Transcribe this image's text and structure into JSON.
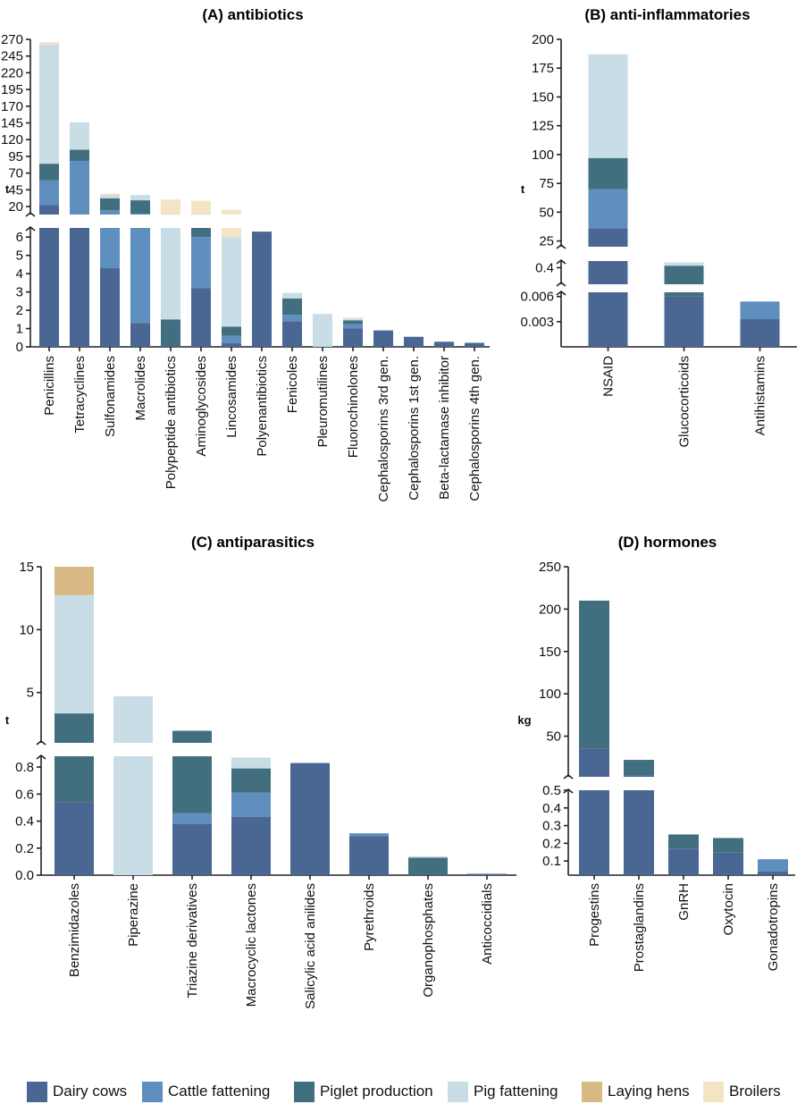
{
  "colors": {
    "Dairy cows": "#4a6793",
    "Cattle fattening": "#5f8fbe",
    "Piglet production": "#426f7f",
    "Pig fattening": "#c9dde6",
    "Laying hens": "#d8b985",
    "Broilers": "#f3e4c4"
  },
  "legend": [
    "Dairy cows",
    "Cattle fattening",
    "Piglet production",
    "Pig fattening",
    "Laying hens",
    "Broilers"
  ],
  "chart_data": [
    {
      "type": "bar",
      "stacked": true,
      "title": "(A)  antibiotics",
      "ylabel": "t",
      "broken_axis": true,
      "upper_ylim": [
        8,
        270
      ],
      "upper_ticks": [
        "20",
        "45",
        "70",
        "95",
        "120",
        "145",
        "170",
        "195",
        "220",
        "245",
        "270"
      ],
      "lower_ylim": [
        0,
        6.5
      ],
      "lower_ticks": [
        "0",
        "1",
        "2",
        "3",
        "4",
        "5",
        "6"
      ],
      "categories": [
        "Penicillins",
        "Tetracyclines",
        "Sulfonamides",
        "Macrolides",
        "Polypeptide antibiotics",
        "Aminoglycosides",
        "Lincosamides",
        "Polyenantibiotics",
        "Fenicoles",
        "Pleuromutilines",
        "Fluorochinolones",
        "Cephalosporins 3rd gen.",
        "Cephalosporins 1st gen.",
        "Beta-lactamase inhibitor",
        "Cephalosporins 4th gen."
      ],
      "series": [
        {
          "name": "Dairy cows",
          "values": [
            22,
            8,
            4.3,
            1.3,
            0,
            3.2,
            0.2,
            6.3,
            1.4,
            0,
            1.0,
            0.9,
            0.55,
            0.28,
            0.22
          ]
        },
        {
          "name": "Cattle fattening",
          "values": [
            37,
            80,
            10,
            8,
            0,
            2.8,
            0.4,
            0,
            0.35,
            0,
            0.25,
            0,
            0,
            0,
            0
          ]
        },
        {
          "name": "Piglet production",
          "values": [
            25,
            17,
            18,
            20,
            1.5,
            0.5,
            0.5,
            0,
            0.9,
            0,
            0.2,
            0,
            0,
            0,
            0
          ]
        },
        {
          "name": "Pig fattening",
          "values": [
            178,
            41,
            5,
            8,
            7,
            2,
            4.9,
            0,
            0.3,
            1.8,
            0.1,
            0,
            0,
            0,
            0
          ]
        },
        {
          "name": "Laying hens",
          "values": [
            0,
            0,
            0,
            0,
            0,
            0,
            0,
            0,
            0,
            0,
            0,
            0,
            0,
            0,
            0
          ]
        },
        {
          "name": "Broilers",
          "values": [
            4,
            0,
            2,
            0,
            22,
            20,
            9,
            0,
            0,
            0,
            0.05,
            0,
            0,
            0,
            0
          ]
        }
      ]
    },
    {
      "type": "bar",
      "stacked": true,
      "title": "(B)  anti-inflammatories",
      "ylabel": "t",
      "broken_axis": true,
      "segment_ranges": [
        [
          0,
          0.0065
        ],
        [
          0.35,
          0.42
        ],
        [
          20,
          200
        ]
      ],
      "segment_ticks": [
        [
          "0.003",
          "0.006"
        ],
        [
          "0.4"
        ],
        [
          "25",
          "50",
          "75",
          "100",
          "125",
          "150",
          "175",
          "200"
        ]
      ],
      "categories": [
        "NSAID",
        "Glucocorticoids",
        "Antihistamins"
      ],
      "series": [
        {
          "name": "Dairy cows",
          "values": [
            36,
            0.006,
            0.0033
          ]
        },
        {
          "name": "Cattle fattening",
          "values": [
            34,
            0,
            0.0021
          ]
        },
        {
          "name": "Piglet production",
          "values": [
            27,
            0.4,
            0
          ]
        },
        {
          "name": "Pig fattening",
          "values": [
            90,
            0.01,
            0
          ]
        },
        {
          "name": "Laying hens",
          "values": [
            0,
            0,
            0
          ]
        },
        {
          "name": "Broilers",
          "values": [
            0,
            0,
            0
          ]
        }
      ]
    },
    {
      "type": "bar",
      "stacked": true,
      "title": "(C)  antiparasitics",
      "ylabel": "t",
      "broken_axis": true,
      "upper_ylim": [
        1,
        15
      ],
      "upper_ticks": [
        "5",
        "10",
        "15"
      ],
      "lower_ylim": [
        0,
        0.88
      ],
      "lower_ticks": [
        "0.0",
        "0.2",
        "0.4",
        "0.6",
        "0.8"
      ],
      "categories": [
        "Benzimidazoles",
        "Piperazine",
        "Triazine derivatives",
        "Macrocyclic lactones",
        "Salicylic acid anilides",
        "Pyrethroids",
        "Organophosphates",
        "Anticoccidials"
      ],
      "series": [
        {
          "name": "Dairy cows",
          "values": [
            0.54,
            0,
            0.38,
            0.43,
            0.83,
            0.29,
            0,
            0.01
          ]
        },
        {
          "name": "Cattle fattening",
          "values": [
            0,
            0,
            0.08,
            0.18,
            0,
            0.02,
            0,
            0
          ]
        },
        {
          "name": "Piglet production",
          "values": [
            2.8,
            0,
            1.5,
            0.18,
            0,
            0,
            0.13,
            0
          ]
        },
        {
          "name": "Pig fattening",
          "values": [
            9.4,
            4.7,
            0,
            0.08,
            0,
            0,
            0.01,
            0
          ]
        },
        {
          "name": "Laying hens",
          "values": [
            2.3,
            0,
            0,
            0,
            0,
            0,
            0,
            0
          ]
        },
        {
          "name": "Broilers",
          "values": [
            0,
            0,
            0,
            0,
            0,
            0,
            0,
            0
          ]
        }
      ]
    },
    {
      "type": "bar",
      "stacked": true,
      "title": "(D)  hormones",
      "ylabel": "kg",
      "broken_axis": true,
      "upper_ylim": [
        2,
        250
      ],
      "upper_ticks": [
        "50",
        "100",
        "150",
        "200",
        "250"
      ],
      "lower_ylim": [
        0.02,
        0.5
      ],
      "lower_ticks": [
        "0.1",
        "0.2",
        "0.3",
        "0.4",
        "0.5"
      ],
      "categories": [
        "Progestins",
        "Prostaglandins",
        "GnRH",
        "Oxytocin",
        "Gonadotropins"
      ],
      "series": [
        {
          "name": "Dairy cows",
          "values": [
            35,
            4,
            0.17,
            0.15,
            0.04
          ]
        },
        {
          "name": "Cattle fattening",
          "values": [
            0,
            0,
            0,
            0,
            0.07
          ]
        },
        {
          "name": "Piglet production",
          "values": [
            175,
            18,
            0.08,
            0.08,
            0
          ]
        },
        {
          "name": "Pig fattening",
          "values": [
            0,
            0,
            0,
            0,
            0
          ]
        },
        {
          "name": "Laying hens",
          "values": [
            0,
            0,
            0,
            0,
            0
          ]
        },
        {
          "name": "Broilers",
          "values": [
            0,
            0,
            0,
            0,
            0
          ]
        }
      ]
    }
  ]
}
